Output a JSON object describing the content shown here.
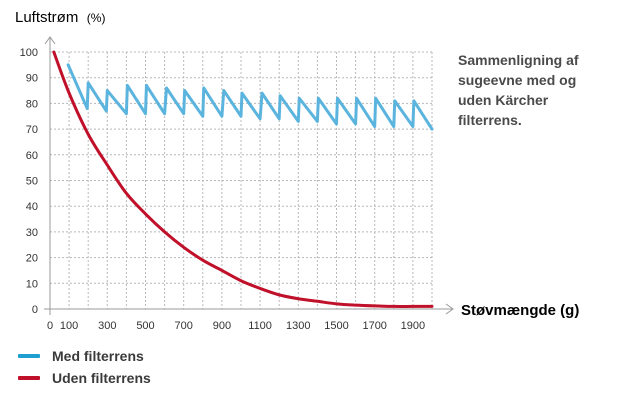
{
  "caption": "Sammenligning af sugeevne med og uden Kärcher filterrens.",
  "legend": [
    {
      "label": "Med filterrens",
      "color": "#5ab4de",
      "swatch": "#1f9ed0"
    },
    {
      "label": "Uden filterrens",
      "color": "#c0102a",
      "swatch": "#c0102a"
    }
  ],
  "chart_data": {
    "type": "line",
    "ylabel": "Luftstrøm",
    "ylabel_unit": "(%)",
    "xlabel": "Støvmængde (g)",
    "xlim": [
      0,
      2000
    ],
    "ylim": [
      0,
      100
    ],
    "x_ticks": [
      0,
      100,
      300,
      500,
      700,
      900,
      1100,
      1300,
      1500,
      1700,
      1900
    ],
    "y_ticks": [
      0,
      10,
      20,
      30,
      40,
      50,
      60,
      70,
      80,
      90,
      100
    ],
    "grid": true,
    "series": [
      {
        "name": "Med filterrens",
        "color": "#5ab4de",
        "points": [
          [
            95,
            95
          ],
          [
            195,
            78
          ],
          [
            200,
            88
          ],
          [
            295,
            77
          ],
          [
            300,
            85
          ],
          [
            400,
            76
          ],
          [
            405,
            87
          ],
          [
            500,
            76
          ],
          [
            505,
            87
          ],
          [
            600,
            76
          ],
          [
            610,
            86
          ],
          [
            700,
            76
          ],
          [
            705,
            85
          ],
          [
            800,
            75
          ],
          [
            805,
            86
          ],
          [
            900,
            75
          ],
          [
            910,
            85
          ],
          [
            1000,
            75
          ],
          [
            1005,
            84
          ],
          [
            1100,
            74
          ],
          [
            1110,
            84
          ],
          [
            1200,
            74
          ],
          [
            1205,
            83
          ],
          [
            1300,
            73
          ],
          [
            1305,
            82
          ],
          [
            1400,
            73
          ],
          [
            1405,
            82
          ],
          [
            1500,
            72
          ],
          [
            1505,
            82
          ],
          [
            1600,
            72
          ],
          [
            1605,
            82
          ],
          [
            1700,
            71
          ],
          [
            1705,
            82
          ],
          [
            1800,
            71
          ],
          [
            1805,
            81
          ],
          [
            1900,
            71
          ],
          [
            1905,
            81
          ],
          [
            2000,
            70
          ]
        ]
      },
      {
        "name": "Uden filterrens",
        "color": "#c0102a",
        "points": [
          [
            20,
            100
          ],
          [
            100,
            84
          ],
          [
            200,
            68
          ],
          [
            300,
            56
          ],
          [
            400,
            45
          ],
          [
            500,
            37
          ],
          [
            600,
            30
          ],
          [
            700,
            24
          ],
          [
            800,
            19
          ],
          [
            900,
            15
          ],
          [
            1000,
            11
          ],
          [
            1100,
            8
          ],
          [
            1200,
            5.5
          ],
          [
            1300,
            4
          ],
          [
            1400,
            3
          ],
          [
            1500,
            2
          ],
          [
            1600,
            1.5
          ],
          [
            1700,
            1.2
          ],
          [
            1800,
            1
          ],
          [
            1900,
            1
          ],
          [
            2000,
            1
          ]
        ]
      }
    ]
  }
}
